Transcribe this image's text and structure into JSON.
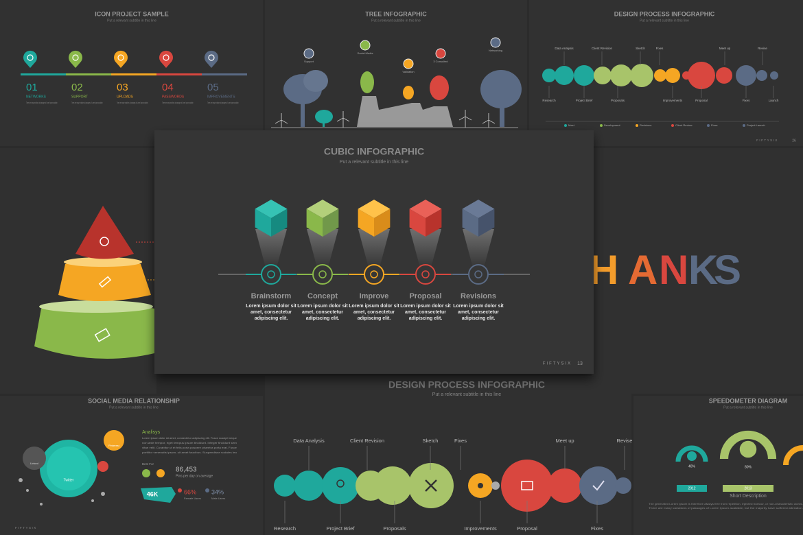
{
  "slides": {
    "icon_project": {
      "title": "ICON PROJECT SAMPLE",
      "subtitle": "Put a relevant subtitle in this line",
      "items": [
        {
          "num": "01",
          "label": "NETWORKS",
          "text": "There are many variations of passages of Lorem Ipsum available."
        },
        {
          "num": "02",
          "label": "SUPPORT",
          "text": "There are many variations of passages of Lorem Ipsum available."
        },
        {
          "num": "03",
          "label": "UPLOADS",
          "text": "There are many variations of passages of Lorem Ipsum available."
        },
        {
          "num": "04",
          "label": "PASSWORDS",
          "text": "There are many variations of passages of Lorem Ipsum available."
        },
        {
          "num": "05",
          "label": "IMPROVEMENTS",
          "text": "There are many variations of passages of Lorem Ipsum available."
        }
      ]
    },
    "tree": {
      "title": "TREE INFOGRAPHIC",
      "subtitle": "Put a relevant subtitle in this line",
      "labels": [
        "Support",
        "Social Media",
        "Validation",
        "3 Consulted",
        "Networking"
      ]
    },
    "design_top": {
      "title": "DESIGN PROCESS INFOGRAPHIC",
      "subtitle": "Put a relevant subtitle in this line",
      "top_labels": [
        "Data Analysis",
        "Client Revision",
        "Sketch",
        "Fixes",
        "Meet up",
        "Revise"
      ],
      "bottom_labels": [
        "Research",
        "Project Brief",
        "Proposals",
        "Improvements",
        "Proposal",
        "Fixes",
        "Launch"
      ],
      "legend": [
        "Meet",
        "Development",
        "Revisions",
        "Client Review",
        "Fixes",
        "Project Launch"
      ],
      "brand": "FIFTYSIX",
      "page": "26"
    },
    "cubic": {
      "title": "CUBIC INFOGRAPHIC",
      "subtitle": "Put a relevant subtitle in this line",
      "steps": [
        {
          "name": "Brainstorm",
          "lines": [
            "Lorem ipsum dolor sit",
            "amet, consectetur",
            "adipiscing elit."
          ]
        },
        {
          "name": "Concept",
          "lines": [
            "Lorem ipsum dolor sit",
            "amet, consectetur",
            "adipiscing elit."
          ]
        },
        {
          "name": "Improve",
          "lines": [
            "Lorem ipsum dolor sit",
            "amet, consectetur",
            "adipiscing elit."
          ]
        },
        {
          "name": "Proposal",
          "lines": [
            "Lorem ipsum dolor sit",
            "amet, consectetur",
            "adipiscing elit."
          ]
        },
        {
          "name": "Revisions",
          "lines": [
            "Lorem ipsum dolor sit",
            "amet, consectetur",
            "adipiscing elit."
          ]
        }
      ],
      "brand": "FIFTYSIX",
      "page": "13"
    },
    "thanks": {
      "letters": [
        "H",
        "A",
        "N",
        "K",
        "S"
      ]
    },
    "social": {
      "title": "SOCIAL MEDIA RELATIONSHIP",
      "subtitle": "Put a relevant subtitle in this line",
      "heading": "Analisys",
      "body": [
        "Lorem ipsum dolor sit amet, consectetur adipiscing elit. Fusce suscipit neque",
        "non ante tempor, eget tempus ipsum tincidunt. Integer tincidunt sem",
        "vitae velit. Curabitur ut et felis porta posuere pharetra porta erat. Fusce",
        "porttitor venenatis ipsum, sit amet faucibus. Suspendisse sodales leo"
      ],
      "best_for": "Best For",
      "stat": "86,453",
      "stat_label": "Pins per day on average",
      "count": "46K",
      "female": "66%",
      "female_label": "Female Users",
      "male": "34%",
      "male_label": "Male Users",
      "bubbles": [
        "Linked",
        "Twitter",
        "Pinterest"
      ],
      "brand": "FIFTYSIX"
    },
    "design_bottom": {
      "title": "DESIGN PROCESS INFOGRAPHIC",
      "subtitle": "Put a relevant subtitle in this line",
      "top_labels": [
        "Data Analysis",
        "Client Revision",
        "Sketch",
        "Fixes",
        "Meet up",
        "Revise"
      ],
      "bottom_labels": [
        "Research",
        "Project Brief",
        "Proposals",
        "Improvements",
        "Proposal",
        "Fixes"
      ]
    },
    "speedometer": {
      "title": "SPEEDOMETER DIAGRAM",
      "subtitle": "Put a relevant subtitle in this line",
      "gauges": [
        {
          "value": "40%",
          "year": "2012"
        },
        {
          "value": "80%",
          "year": "2013"
        }
      ],
      "heading": "Short Description",
      "body": [
        "The generated Lorem Ipsum is therefore always free from repetition, injected humour, or non-characteristic words.",
        "There are many variations of passages of Lorem Ipsum available, but the majority have suffered alteration."
      ]
    }
  }
}
